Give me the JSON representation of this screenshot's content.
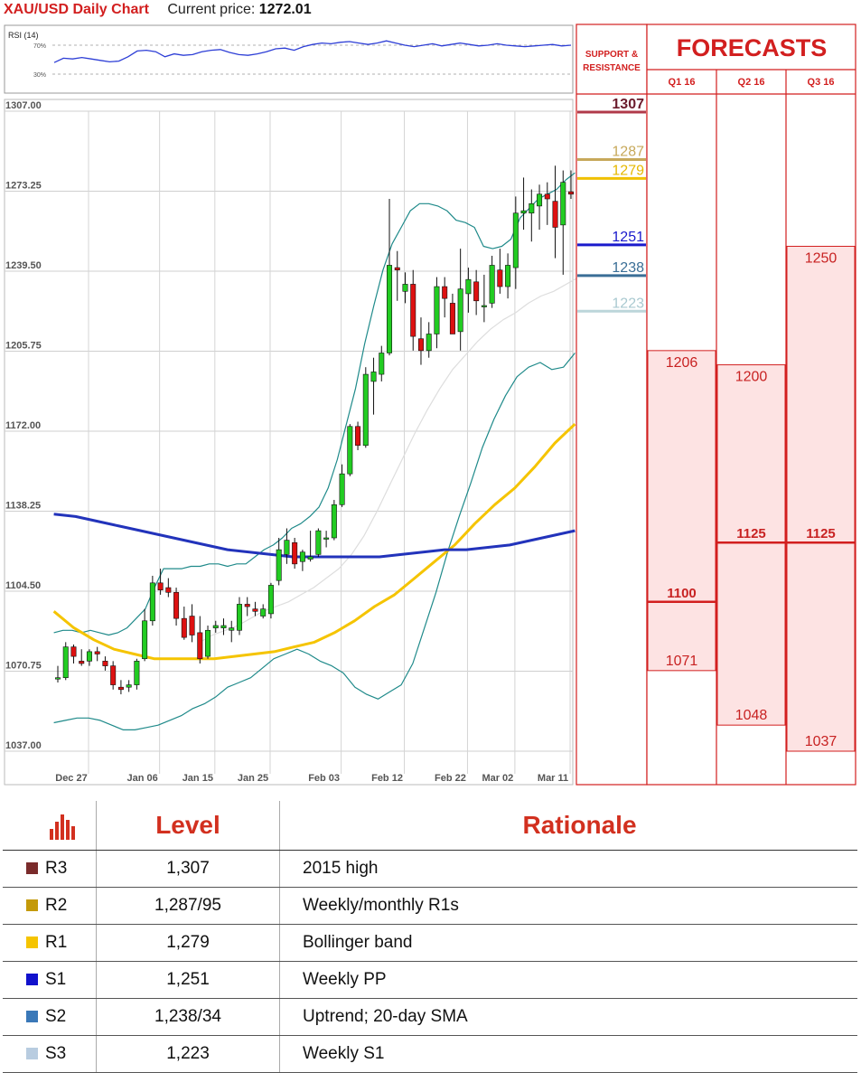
{
  "header": {
    "chart_title": "XAU/USD Daily Chart",
    "price_label": "Current price:",
    "price_value": "1272.01"
  },
  "rsi": {
    "label": "RSI (14)",
    "levels": [
      "70%",
      "30%"
    ],
    "values": [
      46,
      52,
      51,
      53,
      51,
      49,
      47,
      48,
      54,
      62,
      63,
      61,
      54,
      58,
      56,
      57,
      61,
      63,
      64,
      60,
      57,
      56,
      58,
      61,
      65,
      66,
      63,
      68,
      71,
      73,
      72,
      74,
      75,
      73,
      71,
      73,
      76,
      73,
      70,
      68,
      70,
      72,
      69,
      71,
      73,
      71,
      69,
      70,
      72,
      70,
      69,
      68,
      69,
      70,
      71,
      69,
      70
    ]
  },
  "price_axis": {
    "ticks": [
      "1307.00",
      "1273.25",
      "1239.50",
      "1205.75",
      "1172.00",
      "1138.25",
      "1104.50",
      "1070.75",
      "1037.00"
    ]
  },
  "date_axis": {
    "ticks": [
      "Dec 27",
      "Jan 06",
      "Jan 15",
      "Jan 25",
      "Feb 03",
      "Feb 12",
      "Feb 22",
      "Mar 02",
      "Mar 11"
    ]
  },
  "chart_data": {
    "type": "candlestick",
    "title": "XAU/USD Daily Chart",
    "ylim": [
      1037,
      1307
    ],
    "colors": {
      "up": "#22cc22",
      "down": "#dd1111",
      "bollinger": "#1f8a8a",
      "sma20": "#dddddd",
      "sma50": "#f5c400",
      "sma200": "#2233bb"
    },
    "candles": [
      {
        "d": "Dec 27",
        "o": 1068,
        "h": 1073,
        "l": 1066,
        "c": 1068
      },
      {
        "d": "",
        "o": 1068,
        "h": 1083,
        "l": 1067,
        "c": 1081
      },
      {
        "d": "",
        "o": 1081,
        "h": 1082,
        "l": 1074,
        "c": 1077
      },
      {
        "d": "",
        "o": 1075,
        "h": 1080,
        "l": 1073,
        "c": 1074
      },
      {
        "d": "",
        "o": 1075,
        "h": 1080,
        "l": 1073,
        "c": 1079
      },
      {
        "d": "",
        "o": 1079,
        "h": 1081,
        "l": 1075,
        "c": 1078
      },
      {
        "d": "",
        "o": 1075,
        "h": 1077,
        "l": 1071,
        "c": 1073
      },
      {
        "d": "",
        "o": 1073,
        "h": 1075,
        "l": 1063,
        "c": 1065
      },
      {
        "d": "",
        "o": 1064,
        "h": 1067,
        "l": 1061,
        "c": 1063
      },
      {
        "d": "Jan 06",
        "o": 1064,
        "h": 1067,
        "l": 1062,
        "c": 1065
      },
      {
        "d": "",
        "o": 1065,
        "h": 1076,
        "l": 1063,
        "c": 1075
      },
      {
        "d": "",
        "o": 1076,
        "h": 1097,
        "l": 1075,
        "c": 1092
      },
      {
        "d": "",
        "o": 1092,
        "h": 1111,
        "l": 1090,
        "c": 1108
      },
      {
        "d": "",
        "o": 1108,
        "h": 1114,
        "l": 1103,
        "c": 1105
      },
      {
        "d": "",
        "o": 1106,
        "h": 1110,
        "l": 1102,
        "c": 1104
      },
      {
        "d": "",
        "o": 1104,
        "h": 1106,
        "l": 1090,
        "c": 1093
      },
      {
        "d": "Jan 15",
        "o": 1093,
        "h": 1098,
        "l": 1084,
        "c": 1085
      },
      {
        "d": "",
        "o": 1094,
        "h": 1099,
        "l": 1083,
        "c": 1086
      },
      {
        "d": "",
        "o": 1087,
        "h": 1094,
        "l": 1074,
        "c": 1076
      },
      {
        "d": "",
        "o": 1077,
        "h": 1090,
        "l": 1076,
        "c": 1088
      },
      {
        "d": "",
        "o": 1089,
        "h": 1092,
        "l": 1087,
        "c": 1090
      },
      {
        "d": "",
        "o": 1089,
        "h": 1093,
        "l": 1086,
        "c": 1090
      },
      {
        "d": "",
        "o": 1088,
        "h": 1092,
        "l": 1083,
        "c": 1089
      },
      {
        "d": "Jan 25",
        "o": 1088,
        "h": 1102,
        "l": 1086,
        "c": 1099
      },
      {
        "d": "",
        "o": 1099,
        "h": 1102,
        "l": 1094,
        "c": 1098
      },
      {
        "d": "",
        "o": 1097,
        "h": 1100,
        "l": 1094,
        "c": 1096
      },
      {
        "d": "",
        "o": 1094,
        "h": 1099,
        "l": 1093,
        "c": 1097
      },
      {
        "d": "",
        "o": 1095,
        "h": 1108,
        "l": 1093,
        "c": 1107
      },
      {
        "d": "",
        "o": 1109,
        "h": 1127,
        "l": 1107,
        "c": 1122
      },
      {
        "d": "",
        "o": 1120,
        "h": 1131,
        "l": 1116,
        "c": 1126
      },
      {
        "d": "",
        "o": 1125,
        "h": 1127,
        "l": 1114,
        "c": 1116
      },
      {
        "d": "",
        "o": 1117,
        "h": 1122,
        "l": 1113,
        "c": 1121
      },
      {
        "d": "Feb 03",
        "o": 1118,
        "h": 1130,
        "l": 1117,
        "c": 1119
      },
      {
        "d": "",
        "o": 1120,
        "h": 1131,
        "l": 1119,
        "c": 1130
      },
      {
        "d": "",
        "o": 1127,
        "h": 1130,
        "l": 1123,
        "c": 1127
      },
      {
        "d": "",
        "o": 1127,
        "h": 1143,
        "l": 1126,
        "c": 1141
      },
      {
        "d": "",
        "o": 1141,
        "h": 1158,
        "l": 1140,
        "c": 1154
      },
      {
        "d": "",
        "o": 1154,
        "h": 1175,
        "l": 1153,
        "c": 1174
      },
      {
        "d": "",
        "o": 1174,
        "h": 1176,
        "l": 1164,
        "c": 1166
      },
      {
        "d": "",
        "o": 1166,
        "h": 1199,
        "l": 1165,
        "c": 1196
      },
      {
        "d": "Feb 12",
        "o": 1193,
        "h": 1203,
        "l": 1179,
        "c": 1197
      },
      {
        "d": "",
        "o": 1196,
        "h": 1208,
        "l": 1193,
        "c": 1205
      },
      {
        "d": "",
        "o": 1205,
        "h": 1270,
        "l": 1204,
        "c": 1242
      },
      {
        "d": "",
        "o": 1241,
        "h": 1248,
        "l": 1227,
        "c": 1240
      },
      {
        "d": "",
        "o": 1231,
        "h": 1239,
        "l": 1226,
        "c": 1234
      },
      {
        "d": "",
        "o": 1234,
        "h": 1240,
        "l": 1206,
        "c": 1212
      },
      {
        "d": "",
        "o": 1211,
        "h": 1220,
        "l": 1200,
        "c": 1206
      },
      {
        "d": "",
        "o": 1206,
        "h": 1218,
        "l": 1203,
        "c": 1213
      },
      {
        "d": "Feb 22",
        "o": 1213,
        "h": 1237,
        "l": 1207,
        "c": 1233
      },
      {
        "d": "",
        "o": 1233,
        "h": 1237,
        "l": 1220,
        "c": 1228
      },
      {
        "d": "",
        "o": 1226,
        "h": 1230,
        "l": 1214,
        "c": 1213
      },
      {
        "d": "",
        "o": 1214,
        "h": 1249,
        "l": 1206,
        "c": 1232
      },
      {
        "d": "",
        "o": 1230,
        "h": 1241,
        "l": 1222,
        "c": 1236
      },
      {
        "d": "",
        "o": 1235,
        "h": 1240,
        "l": 1221,
        "c": 1227
      },
      {
        "d": "Mar 02",
        "o": 1225,
        "h": 1238,
        "l": 1218,
        "c": 1225
      },
      {
        "d": "",
        "o": 1226,
        "h": 1246,
        "l": 1224,
        "c": 1242
      },
      {
        "d": "",
        "o": 1240,
        "h": 1249,
        "l": 1230,
        "c": 1233
      },
      {
        "d": "",
        "o": 1233,
        "h": 1247,
        "l": 1228,
        "c": 1242
      },
      {
        "d": "",
        "o": 1241,
        "h": 1271,
        "l": 1232,
        "c": 1264
      },
      {
        "d": "",
        "o": 1264,
        "h": 1279,
        "l": 1257,
        "c": 1265
      },
      {
        "d": "",
        "o": 1264,
        "h": 1274,
        "l": 1252,
        "c": 1268
      },
      {
        "d": "Mar 11",
        "o": 1267,
        "h": 1276,
        "l": 1257,
        "c": 1272
      },
      {
        "d": "",
        "o": 1272,
        "h": 1277,
        "l": 1259,
        "c": 1270
      },
      {
        "d": "",
        "o": 1269,
        "h": 1284,
        "l": 1245,
        "c": 1258
      },
      {
        "d": "",
        "o": 1259,
        "h": 1282,
        "l": 1238,
        "c": 1277
      },
      {
        "d": "",
        "o": 1273,
        "h": 1282,
        "l": 1270,
        "c": 1272
      }
    ],
    "bollinger_upper": [
      1087,
      1088,
      1088,
      1087,
      1088,
      1087,
      1086,
      1087,
      1089,
      1093,
      1097,
      1106,
      1114,
      1114,
      1114,
      1115,
      1115,
      1116,
      1116,
      1115,
      1116,
      1116,
      1119,
      1122,
      1124,
      1127,
      1131,
      1133,
      1136,
      1140,
      1148,
      1160,
      1175,
      1190,
      1209,
      1225,
      1240,
      1251,
      1258,
      1265,
      1268,
      1268,
      1267,
      1265,
      1261,
      1260,
      1258,
      1250,
      1249,
      1250,
      1253,
      1262,
      1266,
      1270,
      1272,
      1274,
      1278,
      1281
    ],
    "bollinger_lower": [
      1049,
      1050,
      1051,
      1051,
      1050,
      1048,
      1046,
      1046,
      1047,
      1048,
      1050,
      1052,
      1055,
      1057,
      1060,
      1064,
      1066,
      1068,
      1072,
      1076,
      1078,
      1080,
      1078,
      1075,
      1073,
      1070,
      1064,
      1061,
      1059,
      1062,
      1065,
      1074,
      1089,
      1104,
      1121,
      1136,
      1150,
      1165,
      1177,
      1187,
      1195,
      1199,
      1201,
      1198,
      1199,
      1205
    ],
    "sma20": [
      1083,
      1086,
      1088,
      1090,
      1093,
      1096,
      1098,
      1100,
      1103,
      1106,
      1110,
      1114,
      1120,
      1128,
      1138,
      1149,
      1160,
      1171,
      1181,
      1190,
      1198,
      1204,
      1210,
      1215,
      1219,
      1222,
      1226,
      1229,
      1231,
      1234,
      1237
    ],
    "sma50": [
      1096,
      1089,
      1084,
      1080,
      1078,
      1076,
      1076,
      1076,
      1076,
      1077,
      1078,
      1079,
      1081,
      1083,
      1087,
      1092,
      1098,
      1103,
      1110,
      1117,
      1124,
      1133,
      1141,
      1148,
      1157,
      1167,
      1175
    ],
    "sma200": [
      1137,
      1136,
      1134,
      1132,
      1130,
      1128,
      1126,
      1124,
      1122,
      1121,
      1120,
      1119,
      1119,
      1119,
      1119,
      1119,
      1120,
      1121,
      1122,
      1122,
      1123,
      1124,
      1126,
      1128,
      1130
    ]
  },
  "sr_panel": {
    "header": "SUPPORT & RESISTANCE",
    "levels": [
      {
        "value": "1307",
        "price": 1307,
        "color": "#6b1b2c",
        "fill": "#b03a4a",
        "bold": true
      },
      {
        "value": "1287",
        "price": 1287,
        "color": "#c7a85a",
        "fill": "#c7a85a",
        "bold": false
      },
      {
        "value": "1279",
        "price": 1279,
        "color": "#e6b800",
        "fill": "#f0c000",
        "bold": false
      },
      {
        "value": "1251",
        "price": 1251,
        "color": "#1a1acc",
        "fill": "#1a1acc",
        "bold": false
      },
      {
        "value": "1238",
        "price": 1238,
        "color": "#3a6e96",
        "fill": "#3a6e96",
        "bold": false
      },
      {
        "value": "1223",
        "price": 1223,
        "color": "#a9c9d0",
        "fill": "#bcd6da",
        "bold": false
      }
    ]
  },
  "forecasts": {
    "title": "FORECASTS",
    "columns": [
      {
        "label": "Q1 16",
        "top": 1206,
        "top_label": "1206",
        "mid": 1100,
        "mid_label": "1100",
        "bottom": 1071,
        "bottom_label": "1071"
      },
      {
        "label": "Q2 16",
        "top": 1200,
        "top_label": "1200",
        "mid": 1125,
        "mid_label": "1125",
        "bottom": 1048,
        "bottom_label": "1048"
      },
      {
        "label": "Q3 16",
        "top": 1250,
        "top_label": "1250",
        "mid": 1125,
        "mid_label": "1125",
        "bottom": 1037,
        "bottom_label": "1037"
      }
    ]
  },
  "table": {
    "headers": [
      "Level",
      "Rationale"
    ],
    "rows": [
      {
        "code": "R3",
        "color": "#7a2b2b",
        "level": "1,307",
        "rationale": "2015 high"
      },
      {
        "code": "R2",
        "color": "#c49a0a",
        "level": "1,287/95",
        "rationale": "Weekly/monthly R1s"
      },
      {
        "code": "R1",
        "color": "#f5c400",
        "level": "1,279",
        "rationale": "Bollinger band"
      },
      {
        "code": "S1",
        "color": "#1111cc",
        "level": "1,251",
        "rationale": "Weekly PP"
      },
      {
        "code": "S2",
        "color": "#3a78b8",
        "level": "1,238/34",
        "rationale": "Uptrend; 20-day SMA"
      },
      {
        "code": "S3",
        "color": "#b8cce0",
        "level": "1,223",
        "rationale": "Weekly S1"
      }
    ]
  }
}
